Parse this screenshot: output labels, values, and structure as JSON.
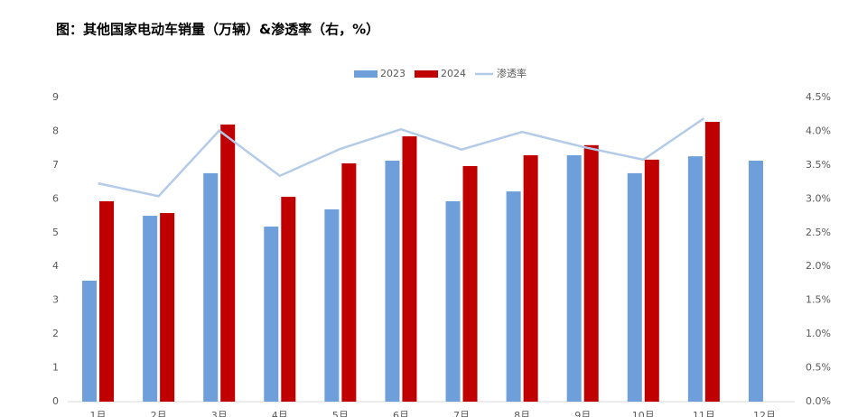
{
  "chart_data": {
    "type": "bar",
    "title": "图：其他国家电动车销量（万辆）&渗透率（右，%）",
    "categories": [
      "1月",
      "2月",
      "3月",
      "4月",
      "5月",
      "6月",
      "7月",
      "8月",
      "9月",
      "10月",
      "11月",
      "12月"
    ],
    "series": [
      {
        "name": "2023",
        "color": "#6f9fdb",
        "values": [
          3.58,
          5.5,
          6.76,
          5.18,
          5.69,
          7.13,
          5.93,
          6.22,
          7.29,
          6.76,
          7.26,
          7.13
        ]
      },
      {
        "name": "2024",
        "color": "#c00000",
        "values": [
          5.93,
          5.58,
          8.2,
          6.06,
          7.05,
          7.85,
          6.97,
          7.29,
          7.59,
          7.16,
          8.28,
          null
        ]
      },
      {
        "name": "渗透率",
        "color": "#b4cbe8",
        "type": "line",
        "axis": "y2",
        "values": [
          3.23,
          3.04,
          4.01,
          3.34,
          3.74,
          4.03,
          3.73,
          3.99,
          3.77,
          3.58,
          4.19,
          null
        ]
      }
    ],
    "ylim": [
      0,
      9
    ],
    "yticks": [
      0,
      1,
      2,
      3,
      4,
      5,
      6,
      7,
      8,
      9
    ],
    "y2lim": [
      0,
      4.5
    ],
    "y2ticks": [
      {
        "value": 0,
        "label": "0.0%"
      },
      {
        "value": 0.5,
        "label": "0.5%"
      },
      {
        "value": 1,
        "label": "1.0%"
      },
      {
        "value": 1.5,
        "label": "1.5%"
      },
      {
        "value": 2,
        "label": "2.0%"
      },
      {
        "value": 2.5,
        "label": "2.5%"
      },
      {
        "value": 3,
        "label": "3.0%"
      },
      {
        "value": 3.5,
        "label": "3.5%"
      },
      {
        "value": 4,
        "label": "4.0%"
      },
      {
        "value": 4.5,
        "label": "4.5%"
      }
    ],
    "legend": "top"
  }
}
